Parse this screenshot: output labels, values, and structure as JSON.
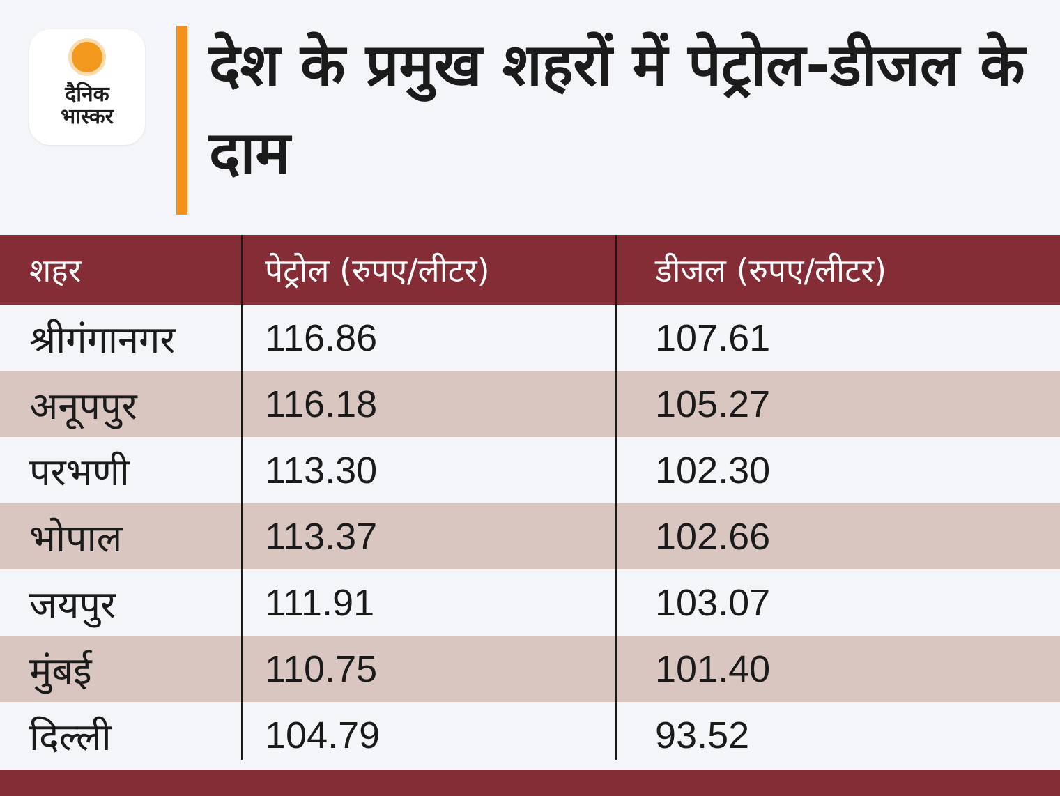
{
  "logo": {
    "line1": "दैनिक",
    "line2": "भास्कर"
  },
  "title": "देश के प्रमुख शहरों में पेट्रोल-डीजल के दाम",
  "table": {
    "headers": [
      "शहर",
      "पेट्रोल (रुपए/लीटर)",
      "डीजल (रुपए/लीटर)"
    ],
    "rows": [
      [
        "श्रीगंगानगर",
        "116.86",
        "107.61"
      ],
      [
        "अनूपपुर",
        "116.18",
        "105.27"
      ],
      [
        "परभणी",
        "113.30",
        "102.30"
      ],
      [
        "भोपाल",
        "113.37",
        "102.66"
      ],
      [
        "जयपुर",
        "111.91",
        "103.07"
      ],
      [
        "मुंबई",
        "110.75",
        "101.40"
      ],
      [
        "दिल्ली",
        "104.79",
        "93.52"
      ]
    ]
  },
  "colors": {
    "accent": "#f4911e",
    "header_bg": "#842d36",
    "stripe": "#d9c6c0",
    "background": "#f4f5f9"
  }
}
